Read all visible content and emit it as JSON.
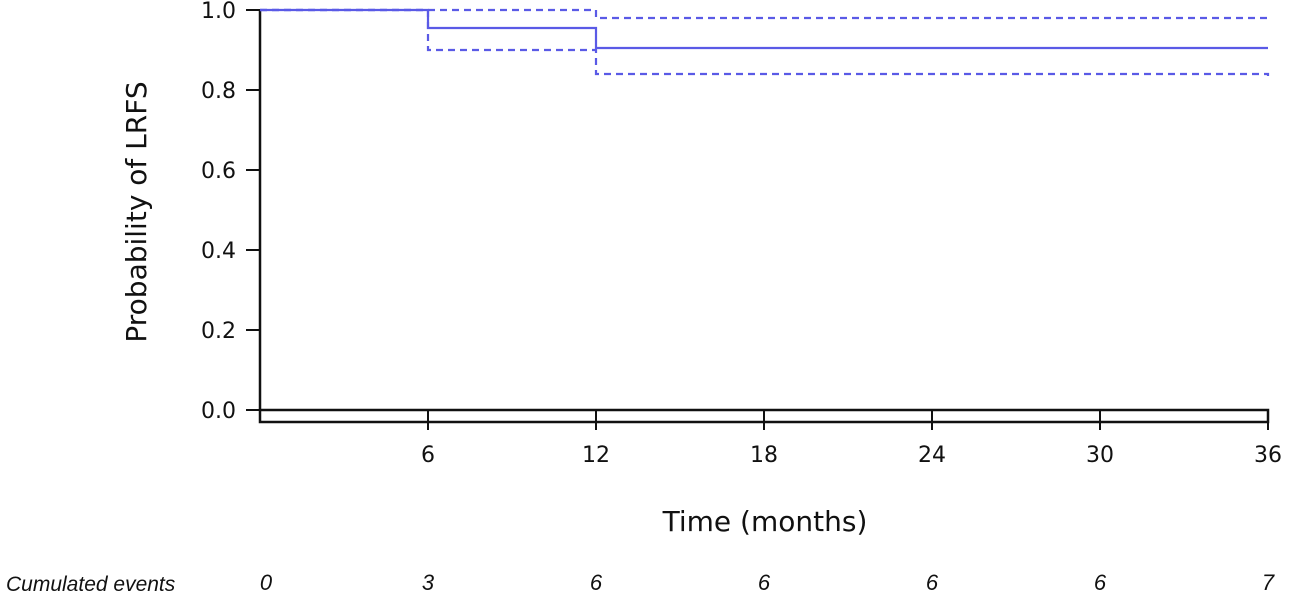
{
  "chart_data": {
    "type": "line",
    "title": "",
    "xlabel": "Time (months)",
    "ylabel": "Probability of LRFS",
    "xlim": [
      0,
      36
    ],
    "ylim": [
      0,
      1
    ],
    "x_ticks": [
      "6",
      "12",
      "18",
      "24",
      "30",
      "36"
    ],
    "x_tick_values": [
      6,
      12,
      18,
      24,
      30,
      36
    ],
    "y_ticks": [
      "0.0",
      "0.2",
      "0.4",
      "0.6",
      "0.8",
      "1.0"
    ],
    "y_tick_values": [
      0,
      0.2,
      0.4,
      0.6,
      0.8,
      1.0
    ],
    "grid": false,
    "series": [
      {
        "role": "estimate",
        "style": "solid",
        "color": "#5a5ae6",
        "steps": [
          [
            0,
            1.0
          ],
          [
            6,
            0.955
          ],
          [
            12,
            0.905
          ],
          [
            36,
            0.905
          ]
        ]
      },
      {
        "role": "upper-ci",
        "style": "dashed",
        "color": "#5a5ae6",
        "steps": [
          [
            0,
            1.0
          ],
          [
            12,
            0.98
          ],
          [
            36,
            0.98
          ]
        ]
      },
      {
        "role": "lower-ci",
        "style": "dashed",
        "color": "#5a5ae6",
        "steps": [
          [
            0,
            1.0
          ],
          [
            6,
            0.9
          ],
          [
            12,
            0.84
          ],
          [
            36,
            0.835
          ]
        ]
      }
    ],
    "events_table": {
      "label": "Cumulated events",
      "times": [
        0,
        6,
        12,
        18,
        24,
        30,
        36
      ],
      "values": [
        "0",
        "3",
        "6",
        "6",
        "6",
        "6",
        "7"
      ]
    }
  }
}
